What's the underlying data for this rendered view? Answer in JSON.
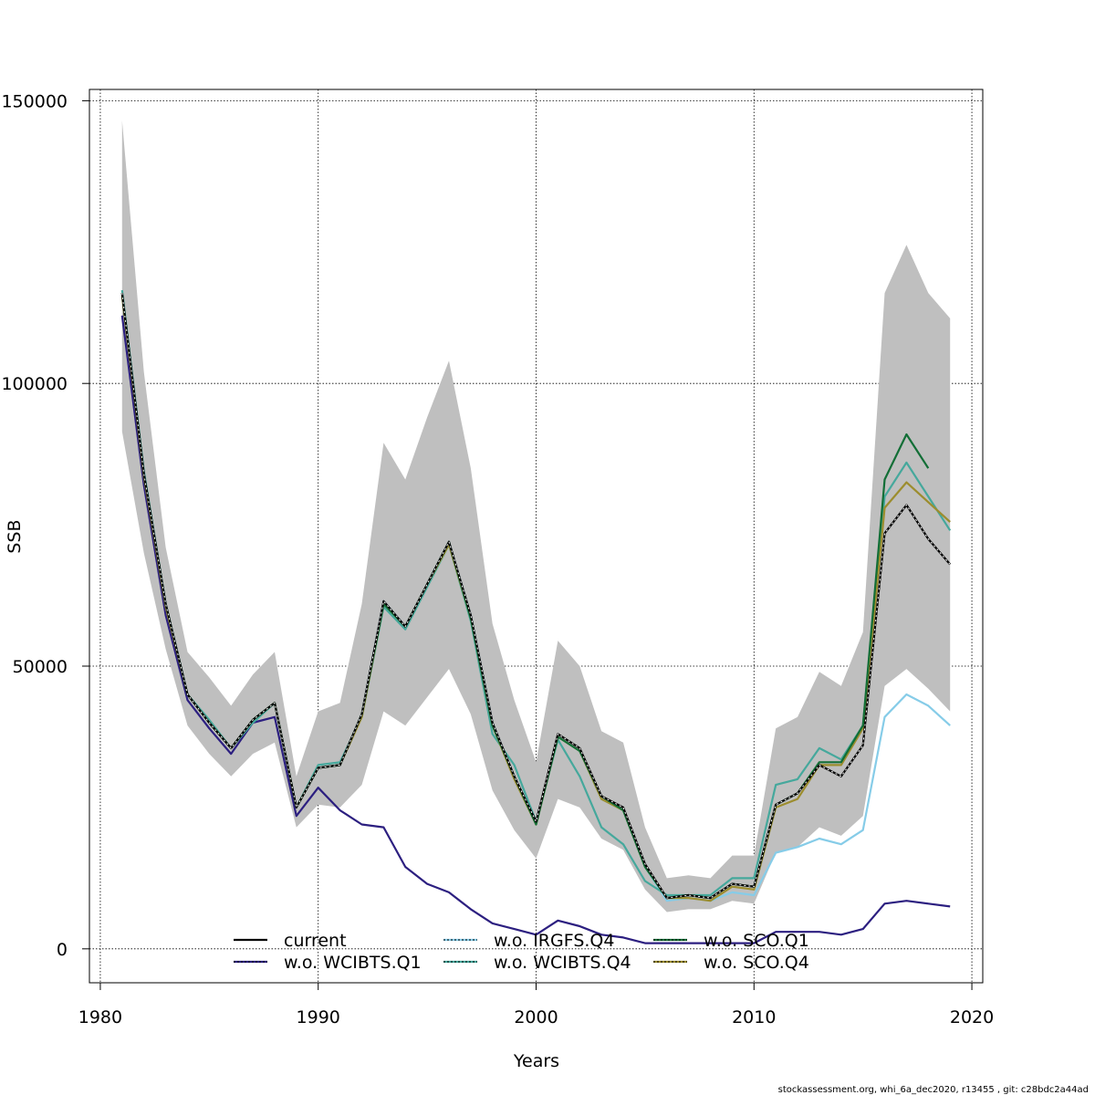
{
  "chart_data": {
    "type": "line",
    "xlabel": "Years",
    "ylabel": "SSB",
    "xlim": [
      1979.5,
      2020.5
    ],
    "ylim": [
      -6000,
      152000
    ],
    "x_ticks": [
      1980,
      1990,
      2000,
      2010,
      2020
    ],
    "y_ticks": [
      0,
      50000,
      100000,
      150000
    ],
    "x_tick_labels": [
      "1980",
      "1990",
      "2000",
      "2010",
      "2020"
    ],
    "y_tick_labels": [
      "0",
      "50000",
      "100000",
      "150000"
    ],
    "grid": true,
    "legend_position": "bottom",
    "footer": "stockassessment.org, whi_6a_dec2020, r13455 , git: c28bdc2a44ad",
    "confidence_band": {
      "x": [
        1981,
        1982,
        1983,
        1984,
        1985,
        1986,
        1987,
        1988,
        1989,
        1990,
        1991,
        1992,
        1993,
        1994,
        1995,
        1996,
        1997,
        1998,
        1999,
        2000,
        2001,
        2002,
        2003,
        2004,
        2005,
        2006,
        2007,
        2008,
        2009,
        2010,
        2011,
        2012,
        2013,
        2014,
        2015,
        2016,
        2017,
        2018,
        2019
      ],
      "upper": [
        146500,
        102000,
        71000,
        52500,
        48000,
        43000,
        48500,
        52500,
        30500,
        42000,
        43500,
        61000,
        89500,
        83000,
        94000,
        104000,
        85000,
        57500,
        44000,
        33000,
        54500,
        50000,
        38500,
        36500,
        21500,
        12500,
        13000,
        12500,
        16500,
        16500,
        39000,
        41000,
        49000,
        46500,
        56000,
        116000,
        124500,
        116000,
        111500
      ],
      "lower": [
        91500,
        70000,
        53000,
        39500,
        34500,
        30500,
        34500,
        36500,
        21500,
        25500,
        25000,
        29000,
        42000,
        39500,
        44500,
        49500,
        41500,
        28000,
        21000,
        16000,
        26500,
        25000,
        19500,
        17500,
        10500,
        6500,
        7000,
        7000,
        8500,
        8000,
        17000,
        18000,
        21500,
        20000,
        23500,
        46500,
        49500,
        46000,
        42000
      ]
    },
    "series": [
      {
        "name": "current",
        "color": "#000000",
        "x": [
          1981,
          1982,
          1983,
          1984,
          1985,
          1986,
          1987,
          1988,
          1989,
          1990,
          1991,
          1992,
          1993,
          1994,
          1995,
          1996,
          1997,
          1998,
          1999,
          2000,
          2001,
          2002,
          2003,
          2004,
          2005,
          2006,
          2007,
          2008,
          2009,
          2010,
          2011,
          2012,
          2013,
          2014,
          2015,
          2016,
          2017,
          2018,
          2019
        ],
        "values": [
          116000,
          84000,
          61000,
          45000,
          40000,
          35500,
          40500,
          43500,
          25000,
          32000,
          32500,
          41500,
          61500,
          57000,
          64500,
          72000,
          59000,
          40000,
          30500,
          22500,
          38000,
          35500,
          27000,
          25000,
          15000,
          9000,
          9500,
          9000,
          11500,
          11000,
          25500,
          27500,
          32500,
          30500,
          36000,
          73500,
          78500,
          72500,
          68000
        ]
      },
      {
        "name": "w.o. WCIBTS.Q1",
        "color": "#2c1f80",
        "x": [
          1981,
          1982,
          1983,
          1984,
          1985,
          1986,
          1987,
          1988,
          1989,
          1990,
          1991,
          1992,
          1993,
          1994,
          1995,
          1996,
          1997,
          1998,
          1999,
          2000,
          2001,
          2002,
          2003,
          2004,
          2005,
          2006,
          2007,
          2008,
          2009,
          2010,
          2011,
          2012,
          2013,
          2014,
          2015,
          2016,
          2017,
          2018,
          2019
        ],
        "values": [
          112000,
          82000,
          59000,
          44000,
          39000,
          34500,
          40000,
          41000,
          23500,
          28500,
          24500,
          22000,
          21500,
          14500,
          11500,
          10000,
          7000,
          4500,
          3500,
          2500,
          5000,
          4000,
          2500,
          2000,
          1000,
          1000,
          1000,
          1000,
          1000,
          1000,
          3000,
          3000,
          3000,
          2500,
          3500,
          8000,
          8500,
          8000,
          7500
        ]
      },
      {
        "name": "w.o. IRGFS.Q4",
        "color": "#86cce8",
        "x": [
          1981,
          1982,
          1983,
          1984,
          1985,
          1986,
          1987,
          1988,
          1989,
          1990,
          1991,
          1992,
          1993,
          1994,
          1995,
          1996,
          1997,
          1998,
          1999,
          2000,
          2001,
          2002,
          2003,
          2004,
          2005,
          2006,
          2007,
          2008,
          2009,
          2010,
          2011,
          2012,
          2013,
          2014,
          2015,
          2016,
          2017,
          2018,
          2019
        ],
        "values": [
          116000,
          84000,
          61000,
          45000,
          40000,
          35500,
          40500,
          43500,
          25000,
          32000,
          32500,
          41500,
          61500,
          57000,
          64500,
          72000,
          59000,
          40000,
          30500,
          22500,
          37500,
          35000,
          26500,
          24500,
          14500,
          8500,
          9000,
          8500,
          10000,
          9500,
          17000,
          18000,
          19500,
          18500,
          21000,
          41000,
          45000,
          43000,
          39500
        ]
      },
      {
        "name": "w.o. WCIBTS.Q4",
        "color": "#45a89c",
        "x": [
          1981,
          1982,
          1983,
          1984,
          1985,
          1986,
          1987,
          1988,
          1989,
          1990,
          1991,
          1992,
          1993,
          1994,
          1995,
          1996,
          1997,
          1998,
          1999,
          2000,
          2001,
          2002,
          2003,
          2004,
          2005,
          2006,
          2007,
          2008,
          2009,
          2010,
          2011,
          2012,
          2013,
          2014,
          2015,
          2016,
          2017,
          2018,
          2019
        ],
        "values": [
          116500,
          84500,
          61000,
          45000,
          40500,
          35500,
          40000,
          43500,
          25000,
          32500,
          33000,
          41000,
          60500,
          56500,
          64000,
          71500,
          58000,
          38000,
          32500,
          22500,
          37000,
          30500,
          21500,
          18500,
          12000,
          9500,
          9500,
          9500,
          12500,
          12500,
          29000,
          30000,
          35500,
          33500,
          39500,
          80000,
          86000,
          80000,
          74000
        ]
      },
      {
        "name": "w.o. SCO.Q1",
        "color": "#126e36",
        "x": [
          1981,
          1982,
          1983,
          1984,
          1985,
          1986,
          1987,
          1988,
          1989,
          1990,
          1991,
          1992,
          1993,
          1994,
          1995,
          1996,
          1997,
          1998,
          1999,
          2000,
          2001,
          2002,
          2003,
          2004,
          2005,
          2006,
          2007,
          2008,
          2009,
          2010,
          2011,
          2012,
          2013,
          2014,
          2015,
          2016,
          2017,
          2018
        ],
        "values": [
          116000,
          84000,
          61000,
          45000,
          40000,
          35500,
          40500,
          43500,
          25000,
          32000,
          32500,
          41500,
          61000,
          57000,
          64500,
          72000,
          58500,
          39500,
          30500,
          22000,
          37500,
          35000,
          27000,
          24500,
          14500,
          9000,
          9500,
          9000,
          11500,
          11000,
          25500,
          27500,
          33000,
          33000,
          39500,
          83000,
          91000,
          85000
        ]
      },
      {
        "name": "w.o. SCO.Q4",
        "color": "#9c8d2e",
        "x": [
          1981,
          1982,
          1983,
          1984,
          1985,
          1986,
          1987,
          1988,
          1989,
          1990,
          1991,
          1992,
          1993,
          1994,
          1995,
          1996,
          1997,
          1998,
          1999,
          2000,
          2001,
          2002,
          2003,
          2004,
          2005,
          2006,
          2007,
          2008,
          2009,
          2010,
          2011,
          2012,
          2013,
          2014,
          2015,
          2016,
          2017,
          2018,
          2019
        ],
        "values": [
          115500,
          83500,
          60500,
          45000,
          40000,
          35500,
          40500,
          43500,
          25000,
          32000,
          32500,
          41000,
          61000,
          57000,
          64500,
          71500,
          58500,
          39500,
          30000,
          22000,
          37500,
          35000,
          26500,
          24500,
          14500,
          9000,
          9000,
          8500,
          11000,
          10500,
          25000,
          26500,
          32500,
          32500,
          39000,
          78000,
          82500,
          79000,
          75500
        ]
      }
    ]
  }
}
